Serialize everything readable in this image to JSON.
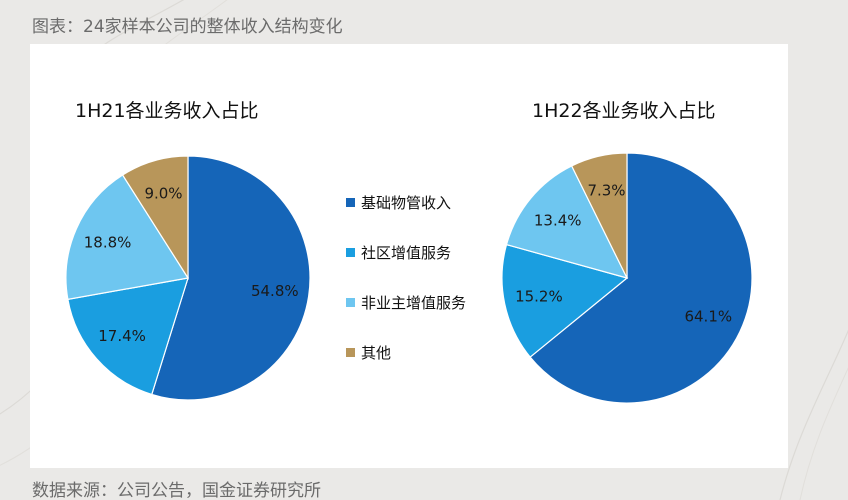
{
  "page": {
    "figure_title": "图表：24家样本公司的整体收入结构变化",
    "source": "数据来源：公司公告，国金证券研究所"
  },
  "legend": [
    {
      "name": "基础物管收入",
      "color": "#1565b8"
    },
    {
      "name": "社区增值服务",
      "color": "#1a9ee0"
    },
    {
      "name": "非业主增值服务",
      "color": "#6ec6f0"
    },
    {
      "name": "其他",
      "color": "#b8965a"
    }
  ],
  "chart_data": [
    {
      "type": "pie",
      "title": "1H21各业务收入占比",
      "categories": [
        "基础物管收入",
        "社区增值服务",
        "非业主增值服务",
        "其他"
      ],
      "values": [
        54.8,
        17.4,
        18.8,
        9.0
      ],
      "labels": [
        "54.8%",
        "17.4%",
        "18.8%",
        "9.0%"
      ],
      "colors": [
        "#1565b8",
        "#1a9ee0",
        "#6ec6f0",
        "#b8965a"
      ],
      "start": "12 o'clock",
      "direction": "clockwise"
    },
    {
      "type": "pie",
      "title": "1H22各业务收入占比",
      "categories": [
        "基础物管收入",
        "社区增值服务",
        "非业主增值服务",
        "其他"
      ],
      "values": [
        64.1,
        15.2,
        13.4,
        7.3
      ],
      "labels": [
        "64.1%",
        "15.2%",
        "13.4%",
        "7.3%"
      ],
      "colors": [
        "#1565b8",
        "#1a9ee0",
        "#6ec6f0",
        "#b8965a"
      ],
      "start": "12 o'clock",
      "direction": "clockwise"
    }
  ]
}
